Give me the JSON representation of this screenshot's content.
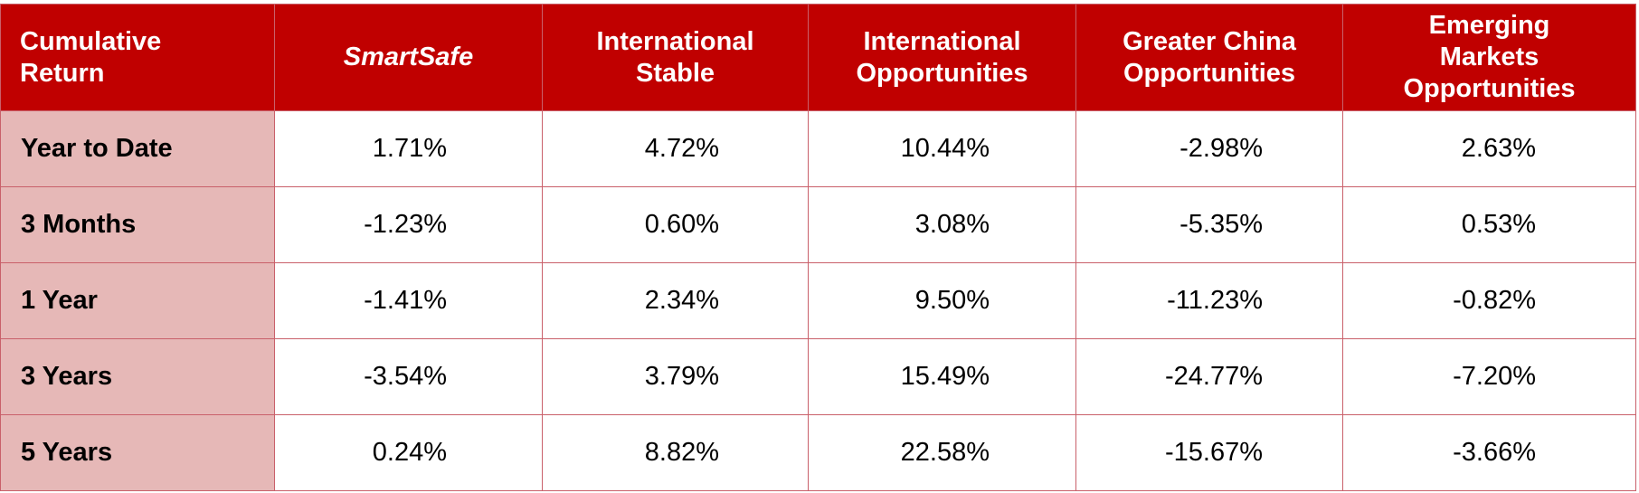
{
  "table": {
    "header": [
      "Cumulative Return",
      "SmartSafe",
      "International Stable",
      "International Opportunities",
      "Greater China Opportunities",
      "Emerging Markets Opportunities"
    ],
    "rows": [
      {
        "label": "Year to Date",
        "values": [
          "1.71%",
          "4.72%",
          "10.44%",
          "-2.98%",
          "2.63%"
        ]
      },
      {
        "label": "3 Months",
        "values": [
          "-1.23%",
          "0.60%",
          "3.08%",
          "-5.35%",
          "0.53%"
        ]
      },
      {
        "label": "1 Year",
        "values": [
          "-1.41%",
          "2.34%",
          "9.50%",
          "-11.23%",
          "-0.82%"
        ]
      },
      {
        "label": "3 Years",
        "values": [
          "-3.54%",
          "3.79%",
          "15.49%",
          "-24.77%",
          "-7.20%"
        ]
      },
      {
        "label": "5 Years",
        "values": [
          "0.24%",
          "8.82%",
          "22.58%",
          "-15.67%",
          "-3.66%"
        ]
      }
    ]
  }
}
